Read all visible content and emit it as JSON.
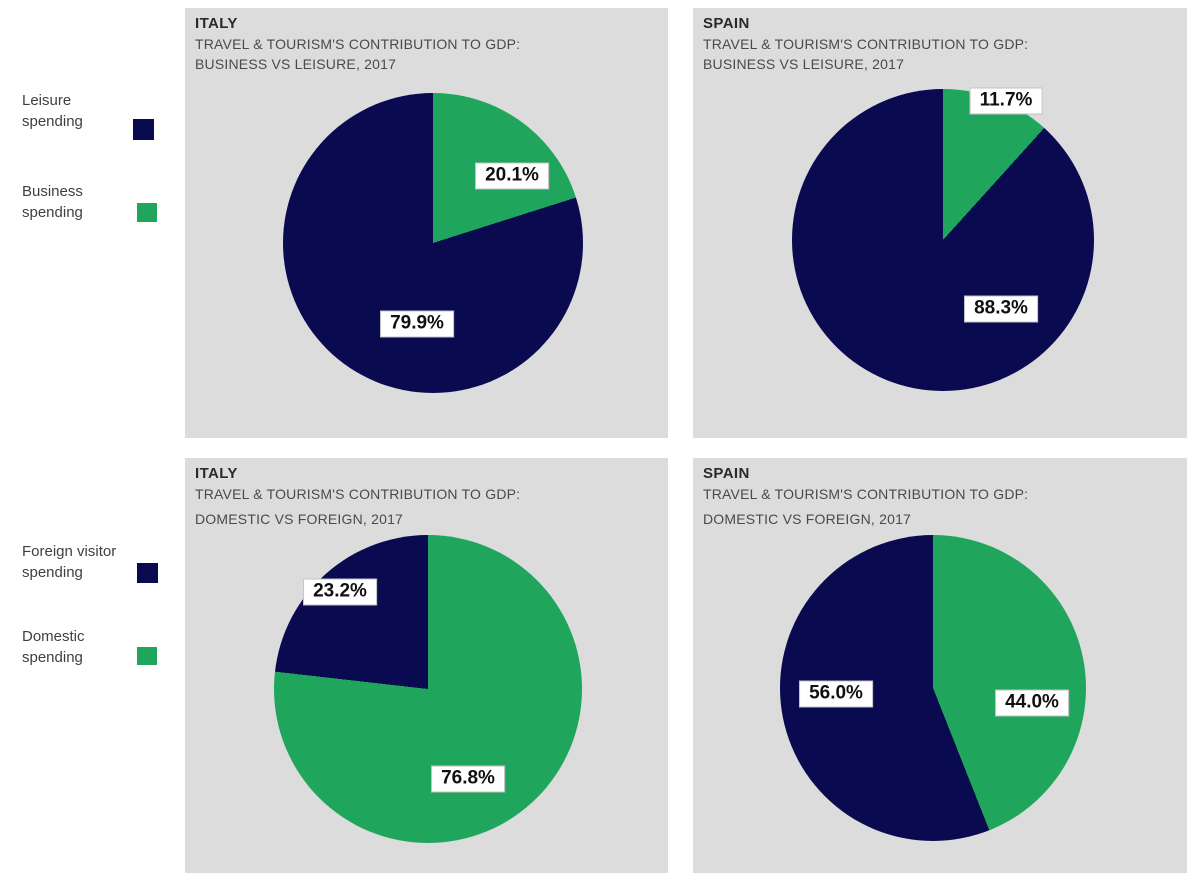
{
  "colors": {
    "navy": "#0a0a50",
    "green": "#1fa65c",
    "panel_bg": "#dcdcdc",
    "label_box_bg": "#ffffff",
    "label_box_border": "#c2c2c2"
  },
  "legend_groups": [
    {
      "items": [
        {
          "label": "Leisure spending",
          "color": "navy"
        },
        {
          "label": "Business spending",
          "color": "green"
        }
      ]
    },
    {
      "items": [
        {
          "label": "Foreign visitor spending",
          "color": "navy"
        },
        {
          "label": "Domestic spending",
          "color": "green"
        }
      ]
    }
  ],
  "chart_data": [
    {
      "type": "pie",
      "country": "ITALY",
      "subtitle_line1": "TRAVEL & TOURISM'S CONTRIBUTION TO GDP:",
      "subtitle_line2": "BUSINESS VS LEISURE, 2017",
      "start_angle_deg": 0,
      "direction": "clockwise",
      "slices": [
        {
          "name": "Business spending",
          "value": 20.1,
          "label": "20.1%",
          "color": "green"
        },
        {
          "name": "Leisure spending",
          "value": 79.9,
          "label": "79.9%",
          "color": "navy"
        }
      ]
    },
    {
      "type": "pie",
      "country": "SPAIN",
      "subtitle_line1": "TRAVEL & TOURISM'S CONTRIBUTION TO GDP:",
      "subtitle_line2": "BUSINESS VS LEISURE, 2017",
      "start_angle_deg": 0,
      "direction": "clockwise",
      "slices": [
        {
          "name": "Business spending",
          "value": 11.7,
          "label": "11.7%",
          "color": "green"
        },
        {
          "name": "Leisure spending",
          "value": 88.3,
          "label": "88.3%",
          "color": "navy"
        }
      ]
    },
    {
      "type": "pie",
      "country": "ITALY",
      "subtitle_line1": "TRAVEL & TOURISM'S CONTRIBUTION TO GDP:",
      "subtitle_line2": "DOMESTIC VS FOREIGN, 2017",
      "start_angle_deg": 0,
      "direction": "clockwise",
      "slices": [
        {
          "name": "Domestic spending",
          "value": 76.8,
          "label": "76.8%",
          "color": "green"
        },
        {
          "name": "Foreign visitor spending",
          "value": 23.2,
          "label": "23.2%",
          "color": "navy"
        }
      ]
    },
    {
      "type": "pie",
      "country": "SPAIN",
      "subtitle_line1": "TRAVEL & TOURISM'S CONTRIBUTION TO GDP:",
      "subtitle_line2": "DOMESTIC VS FOREIGN, 2017",
      "start_angle_deg": 0,
      "direction": "clockwise",
      "slices": [
        {
          "name": "Domestic spending",
          "value": 44.0,
          "label": "44.0%",
          "color": "green"
        },
        {
          "name": "Foreign visitor spending",
          "value": 56.0,
          "label": "56.0%",
          "color": "navy"
        }
      ]
    }
  ]
}
